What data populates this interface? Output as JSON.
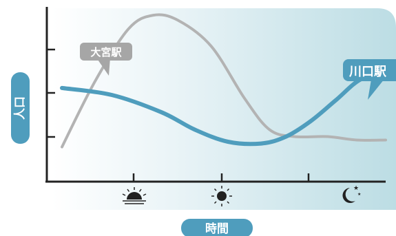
{
  "chart_data": {
    "type": "line",
    "ylabel": "人口",
    "xlabel": "時間",
    "x_ticks": [
      "sunrise-icon",
      "sun-icon",
      "moon-icon"
    ],
    "grid": false,
    "series": [
      {
        "name": "大宮駅",
        "color": "#b3b3b3",
        "values": [
          [
            0,
            20
          ],
          [
            8,
            58
          ],
          [
            16,
            88
          ],
          [
            22,
            96
          ],
          [
            28,
            93
          ],
          [
            36,
            78
          ],
          [
            44,
            48
          ],
          [
            50,
            30
          ],
          [
            56,
            26
          ],
          [
            64,
            26
          ],
          [
            71,
            24
          ],
          [
            78,
            24
          ]
        ]
      },
      {
        "name": "川口駅",
        "color": "#4f9dbd",
        "values": [
          [
            0,
            54
          ],
          [
            12,
            50
          ],
          [
            24,
            40
          ],
          [
            32,
            30
          ],
          [
            40,
            23
          ],
          [
            48,
            22
          ],
          [
            54,
            26
          ],
          [
            60,
            35
          ],
          [
            66,
            47
          ],
          [
            72,
            59
          ],
          [
            78,
            62
          ]
        ]
      }
    ]
  },
  "colors": {
    "axis": "#222222",
    "panel_light": "#ffffff",
    "panel_dark": "#bcdde4",
    "label_bg": "#4f9dbd",
    "callout_gray": "#a6a6a6"
  }
}
